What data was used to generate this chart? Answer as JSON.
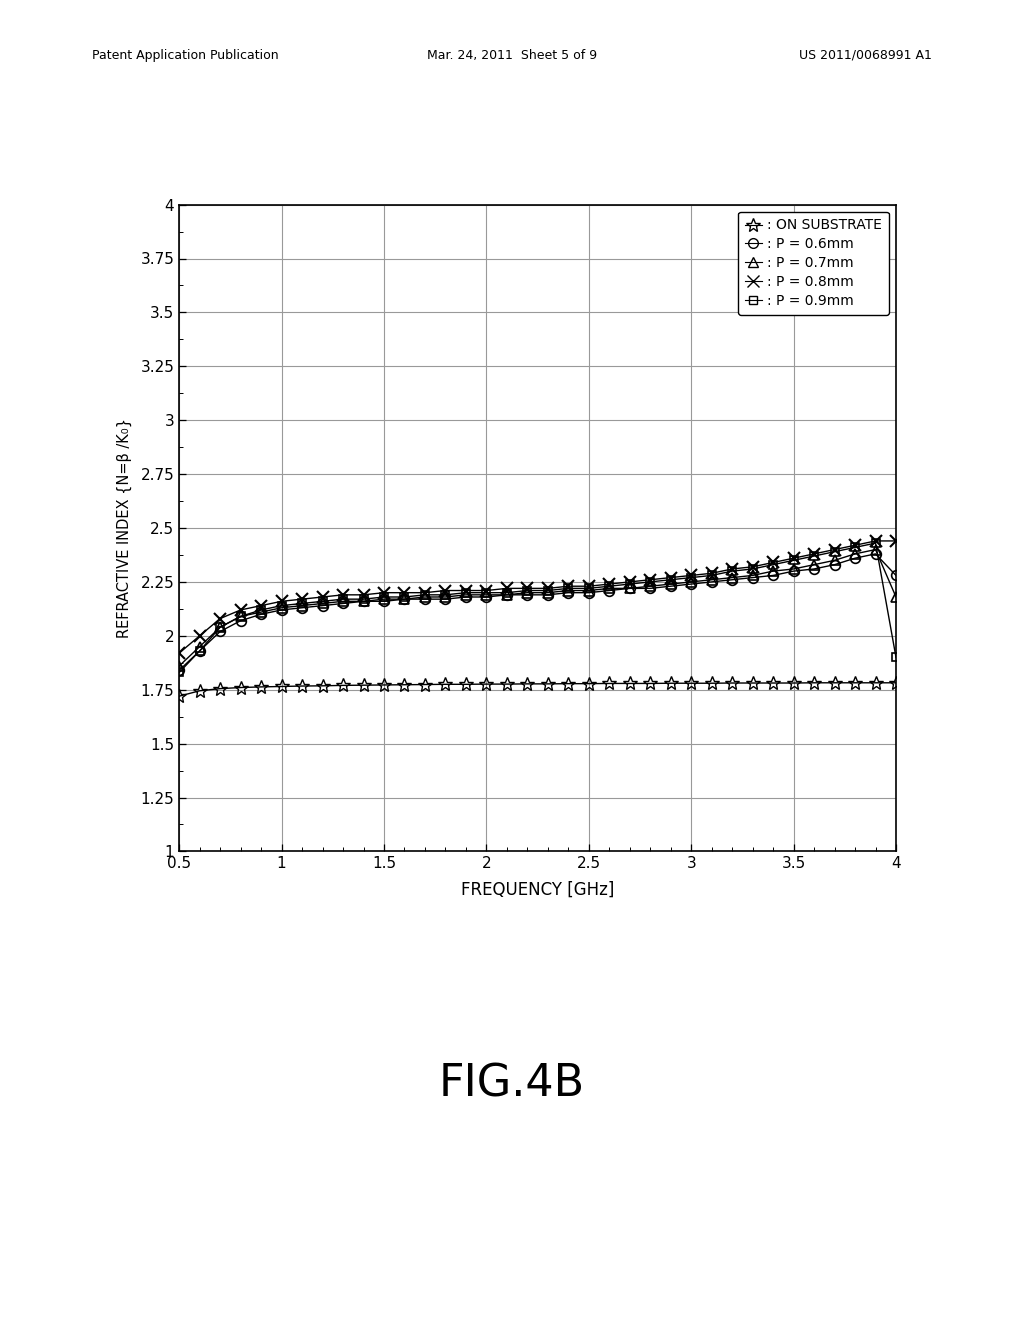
{
  "title": "FIG.4B",
  "xlabel": "FREQUENCY [GHz]",
  "ylabel": "REFRACTIVE INDEX {N=β /K₀}",
  "xlim": [
    0.5,
    4.0
  ],
  "ylim": [
    1.0,
    4.0
  ],
  "xticks": [
    0.5,
    1.0,
    1.5,
    2.0,
    2.5,
    3.0,
    3.5,
    4.0
  ],
  "yticks": [
    1.0,
    1.25,
    1.5,
    1.75,
    2.0,
    2.25,
    2.5,
    2.75,
    3.0,
    3.25,
    3.5,
    3.75,
    4.0
  ],
  "header_left": "Patent Application Publication",
  "header_mid": "Mar. 24, 2011  Sheet 5 of 9",
  "header_right": "US 2011/0068991 A1",
  "series": {
    "on_substrate": {
      "label": ": ON SUBSTRATE",
      "marker": "*",
      "freq": [
        0.5,
        0.6,
        0.7,
        0.8,
        0.9,
        1.0,
        1.1,
        1.2,
        1.3,
        1.4,
        1.5,
        1.6,
        1.7,
        1.8,
        1.9,
        2.0,
        2.1,
        2.2,
        2.3,
        2.4,
        2.5,
        2.6,
        2.7,
        2.8,
        2.9,
        3.0,
        3.1,
        3.2,
        3.3,
        3.4,
        3.5,
        3.6,
        3.7,
        3.8,
        3.9,
        4.0
      ],
      "values": [
        1.72,
        1.745,
        1.755,
        1.76,
        1.763,
        1.765,
        1.767,
        1.768,
        1.77,
        1.771,
        1.772,
        1.773,
        1.774,
        1.775,
        1.775,
        1.776,
        1.776,
        1.777,
        1.777,
        1.778,
        1.778,
        1.779,
        1.779,
        1.779,
        1.78,
        1.78,
        1.78,
        1.781,
        1.781,
        1.781,
        1.781,
        1.782,
        1.782,
        1.782,
        1.782,
        1.782
      ]
    },
    "p06": {
      "label": ": P = 0.6mm",
      "marker": "o",
      "freq": [
        0.5,
        0.6,
        0.7,
        0.8,
        0.9,
        1.0,
        1.1,
        1.2,
        1.3,
        1.4,
        1.5,
        1.6,
        1.7,
        1.8,
        1.9,
        2.0,
        2.1,
        2.2,
        2.3,
        2.4,
        2.5,
        2.6,
        2.7,
        2.8,
        2.9,
        3.0,
        3.1,
        3.2,
        3.3,
        3.4,
        3.5,
        3.6,
        3.7,
        3.8,
        3.9,
        4.0
      ],
      "values": [
        1.84,
        1.93,
        2.02,
        2.07,
        2.1,
        2.12,
        2.13,
        2.14,
        2.15,
        2.16,
        2.16,
        2.17,
        2.17,
        2.17,
        2.18,
        2.18,
        2.19,
        2.19,
        2.19,
        2.2,
        2.2,
        2.21,
        2.22,
        2.22,
        2.23,
        2.24,
        2.25,
        2.26,
        2.27,
        2.28,
        2.3,
        2.31,
        2.33,
        2.36,
        2.38,
        2.28
      ]
    },
    "p07": {
      "label": ": P = 0.7mm",
      "marker": "^",
      "freq": [
        0.5,
        0.6,
        0.7,
        0.8,
        0.9,
        1.0,
        1.1,
        1.2,
        1.3,
        1.4,
        1.5,
        1.6,
        1.7,
        1.8,
        1.9,
        2.0,
        2.1,
        2.2,
        2.3,
        2.4,
        2.5,
        2.6,
        2.7,
        2.8,
        2.9,
        3.0,
        3.1,
        3.2,
        3.3,
        3.4,
        3.5,
        3.6,
        3.7,
        3.8,
        3.9,
        4.0
      ],
      "values": [
        1.86,
        1.95,
        2.04,
        2.09,
        2.11,
        2.13,
        2.14,
        2.15,
        2.16,
        2.16,
        2.17,
        2.17,
        2.18,
        2.18,
        2.19,
        2.19,
        2.19,
        2.2,
        2.2,
        2.21,
        2.21,
        2.22,
        2.22,
        2.23,
        2.24,
        2.25,
        2.26,
        2.27,
        2.28,
        2.3,
        2.31,
        2.33,
        2.35,
        2.38,
        2.4,
        2.18
      ]
    },
    "p08": {
      "label": ": P = 0.8mm",
      "marker": "x",
      "freq": [
        0.5,
        0.6,
        0.7,
        0.8,
        0.9,
        1.0,
        1.1,
        1.2,
        1.3,
        1.4,
        1.5,
        1.6,
        1.7,
        1.8,
        1.9,
        2.0,
        2.1,
        2.2,
        2.3,
        2.4,
        2.5,
        2.6,
        2.7,
        2.8,
        2.9,
        3.0,
        3.1,
        3.2,
        3.3,
        3.4,
        3.5,
        3.6,
        3.7,
        3.8,
        3.9,
        4.0
      ],
      "values": [
        1.92,
        2.0,
        2.08,
        2.12,
        2.14,
        2.16,
        2.17,
        2.18,
        2.19,
        2.19,
        2.2,
        2.2,
        2.2,
        2.21,
        2.21,
        2.21,
        2.22,
        2.22,
        2.22,
        2.23,
        2.23,
        2.24,
        2.25,
        2.26,
        2.27,
        2.28,
        2.29,
        2.31,
        2.32,
        2.34,
        2.36,
        2.38,
        2.4,
        2.42,
        2.44,
        2.44
      ]
    },
    "p09": {
      "label": ": P = 0.9mm",
      "marker": "s",
      "freq": [
        0.5,
        0.6,
        0.7,
        0.8,
        0.9,
        1.0,
        1.1,
        1.2,
        1.3,
        1.4,
        1.5,
        1.6,
        1.7,
        1.8,
        1.9,
        2.0,
        2.1,
        2.2,
        2.3,
        2.4,
        2.5,
        2.6,
        2.7,
        2.8,
        2.9,
        3.0,
        3.1,
        3.2,
        3.3,
        3.4,
        3.5,
        3.6,
        3.7,
        3.8,
        3.9,
        4.0
      ],
      "values": [
        1.83,
        1.93,
        2.04,
        2.09,
        2.12,
        2.14,
        2.15,
        2.16,
        2.17,
        2.17,
        2.18,
        2.18,
        2.19,
        2.19,
        2.2,
        2.2,
        2.2,
        2.21,
        2.21,
        2.22,
        2.22,
        2.23,
        2.24,
        2.25,
        2.26,
        2.27,
        2.28,
        2.3,
        2.31,
        2.33,
        2.35,
        2.37,
        2.39,
        2.41,
        2.43,
        1.9
      ]
    }
  },
  "background_color": "#ffffff",
  "grid_color": "#999999"
}
